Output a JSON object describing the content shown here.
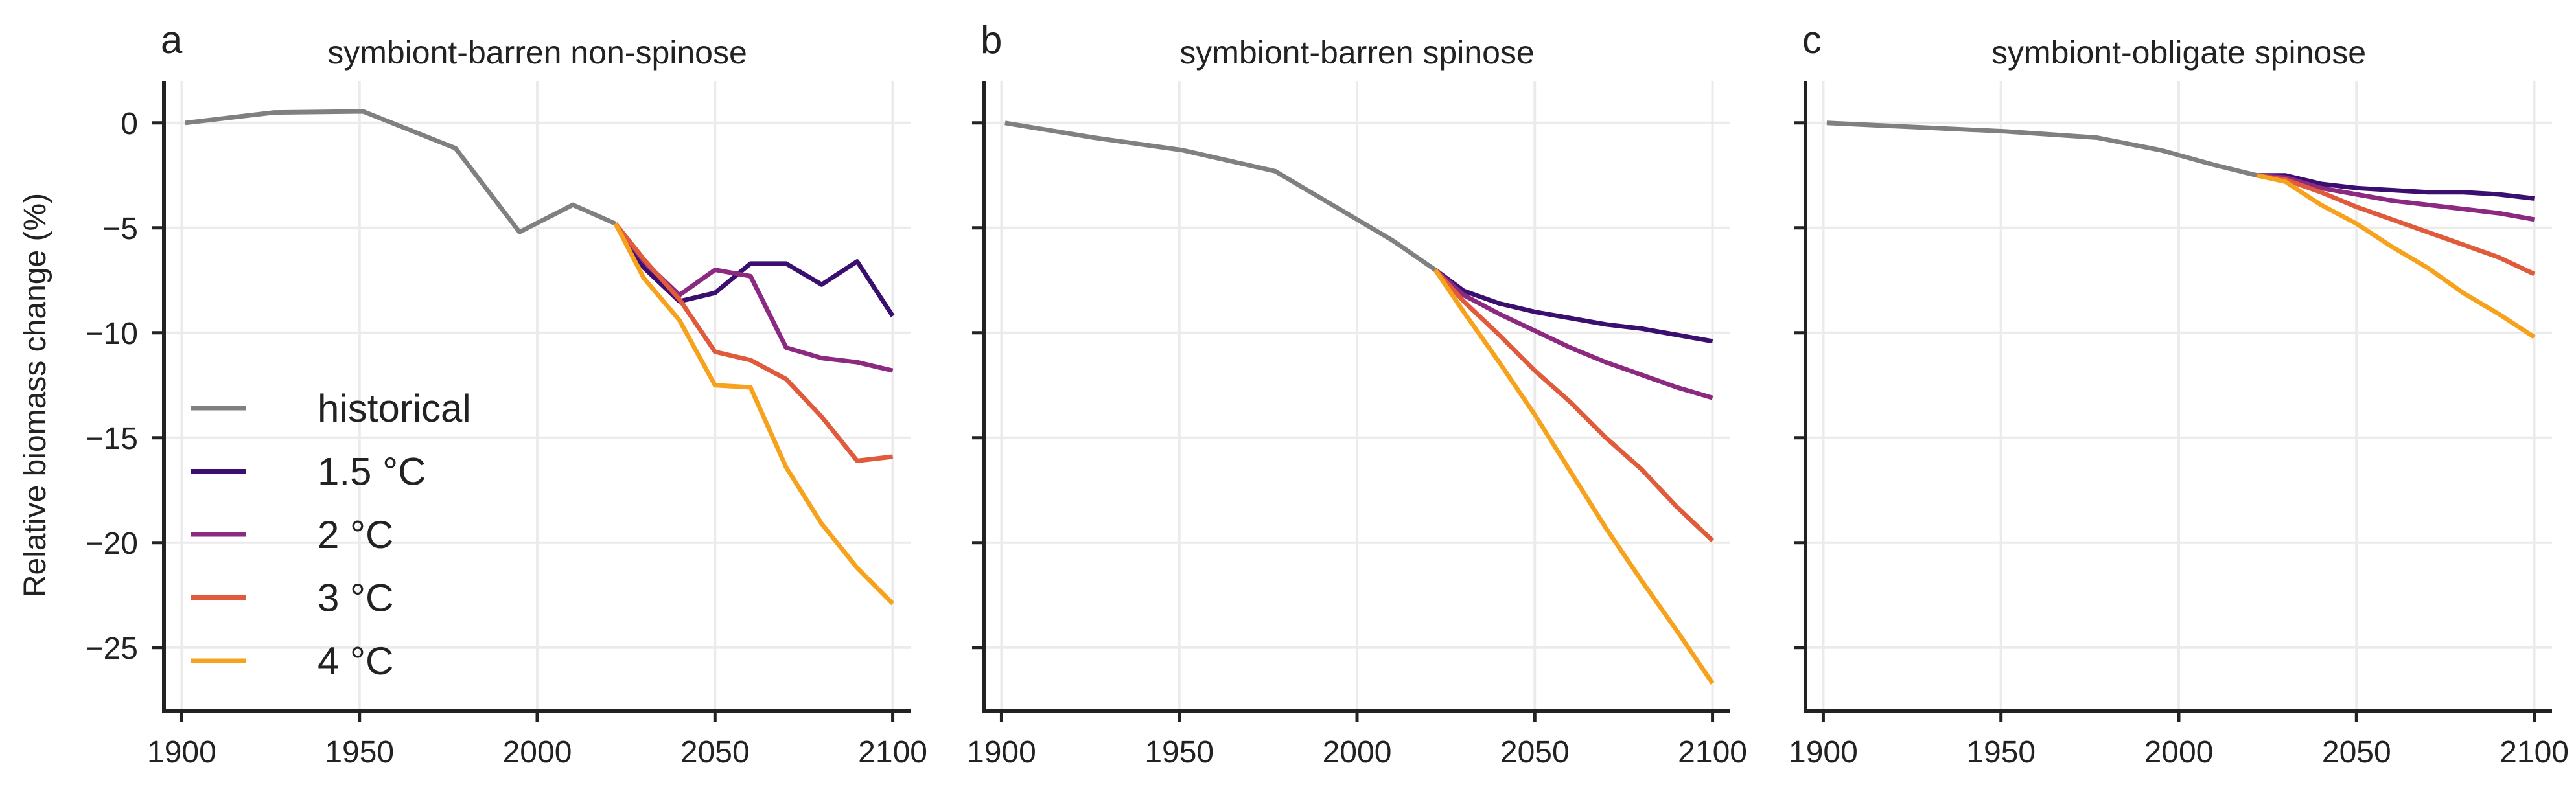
{
  "chart_data": [
    {
      "type": "line",
      "panel_label": "a",
      "title": "symbiont-barren non-spinose",
      "ylabel": "Relative biomass change (%)",
      "xlim": [
        1895,
        2105
      ],
      "ylim": [
        -28,
        2
      ],
      "xticks": [
        1900,
        1950,
        2000,
        2050,
        2100
      ],
      "xtick_labels": [
        "1900",
        "1950",
        "2000",
        "2050",
        "2100"
      ],
      "yticks": [
        0,
        -5,
        -10,
        -15,
        -20,
        -25
      ],
      "ytick_labels": [
        "0",
        "−5",
        "−10",
        "−15",
        "−20",
        "−25"
      ],
      "show_yticklabels": true,
      "grid": true,
      "legend": true,
      "legend_position": "lower-left",
      "series": [
        {
          "name": "historical",
          "color": "#808080",
          "x": [
            1901,
            1926,
            1951,
            1977,
            1995,
            2010,
            2022
          ],
          "y": [
            0.0,
            0.5,
            0.55,
            -1.2,
            -5.2,
            -3.9,
            -4.8
          ]
        },
        {
          "name": "1.5 °C",
          "color": "#3b0f70",
          "x": [
            2022,
            2030,
            2040,
            2050,
            2060,
            2070,
            2080,
            2090,
            2100
          ],
          "y": [
            -4.8,
            -6.9,
            -8.5,
            -8.1,
            -6.7,
            -6.7,
            -7.7,
            -6.6,
            -9.2
          ]
        },
        {
          "name": "2 °C",
          "color": "#8c2981",
          "x": [
            2022,
            2030,
            2040,
            2050,
            2060,
            2070,
            2080,
            2090,
            2100
          ],
          "y": [
            -4.8,
            -6.6,
            -8.2,
            -7.0,
            -7.3,
            -10.7,
            -11.2,
            -11.4,
            -11.8
          ]
        },
        {
          "name": "3 °C",
          "color": "#e05a3c",
          "x": [
            2022,
            2030,
            2040,
            2050,
            2060,
            2070,
            2080,
            2090,
            2100
          ],
          "y": [
            -4.8,
            -6.5,
            -8.4,
            -10.9,
            -11.3,
            -12.2,
            -14.0,
            -16.1,
            -15.9
          ]
        },
        {
          "name": "4 °C",
          "color": "#f6a21c",
          "x": [
            2022,
            2030,
            2040,
            2050,
            2060,
            2070,
            2080,
            2090,
            2100
          ],
          "y": [
            -4.8,
            -7.4,
            -9.4,
            -12.5,
            -12.6,
            -16.4,
            -19.1,
            -21.2,
            -22.9
          ]
        }
      ]
    },
    {
      "type": "line",
      "panel_label": "b",
      "title": "symbiont-barren spinose",
      "xlim": [
        1895,
        2105
      ],
      "ylim": [
        -28,
        2
      ],
      "xticks": [
        1900,
        1950,
        2000,
        2050,
        2100
      ],
      "xtick_labels": [
        "1900",
        "1950",
        "2000",
        "2050",
        "2100"
      ],
      "yticks": [
        0,
        -5,
        -10,
        -15,
        -20,
        -25
      ],
      "show_yticklabels": false,
      "grid": true,
      "legend": false,
      "series": [
        {
          "name": "historical",
          "color": "#808080",
          "x": [
            1901,
            1926,
            1951,
            1977,
            1995,
            2010,
            2022
          ],
          "y": [
            0.0,
            -0.7,
            -1.3,
            -2.3,
            -4.1,
            -5.6,
            -7.0
          ]
        },
        {
          "name": "1.5 °C",
          "color": "#3b0f70",
          "x": [
            2022,
            2030,
            2040,
            2050,
            2060,
            2070,
            2080,
            2090,
            2100
          ],
          "y": [
            -7.0,
            -8.0,
            -8.6,
            -9.0,
            -9.3,
            -9.6,
            -9.8,
            -10.1,
            -10.4
          ]
        },
        {
          "name": "2 °C",
          "color": "#8c2981",
          "x": [
            2022,
            2030,
            2040,
            2050,
            2060,
            2070,
            2080,
            2090,
            2100
          ],
          "y": [
            -7.0,
            -8.2,
            -9.1,
            -9.9,
            -10.7,
            -11.4,
            -12.0,
            -12.6,
            -13.1
          ]
        },
        {
          "name": "3 °C",
          "color": "#e05a3c",
          "x": [
            2022,
            2030,
            2040,
            2050,
            2060,
            2070,
            2080,
            2090,
            2100
          ],
          "y": [
            -7.0,
            -8.5,
            -10.1,
            -11.8,
            -13.3,
            -15.0,
            -16.5,
            -18.3,
            -19.9
          ]
        },
        {
          "name": "4 °C",
          "color": "#f6a21c",
          "x": [
            2022,
            2030,
            2040,
            2050,
            2060,
            2070,
            2080,
            2090,
            2100
          ],
          "y": [
            -7.0,
            -9.0,
            -11.4,
            -13.9,
            -16.6,
            -19.3,
            -21.8,
            -24.2,
            -26.7
          ]
        }
      ]
    },
    {
      "type": "line",
      "panel_label": "c",
      "title": "symbiont-obligate spinose",
      "xlim": [
        1895,
        2105
      ],
      "ylim": [
        -28,
        2
      ],
      "xticks": [
        1900,
        1950,
        2000,
        2050,
        2100
      ],
      "xtick_labels": [
        "1900",
        "1950",
        "2000",
        "2050",
        "2100"
      ],
      "yticks": [
        0,
        -5,
        -10,
        -15,
        -20,
        -25
      ],
      "show_yticklabels": false,
      "grid": true,
      "legend": false,
      "series": [
        {
          "name": "historical",
          "color": "#808080",
          "x": [
            1901,
            1926,
            1951,
            1977,
            1995,
            2010,
            2022
          ],
          "y": [
            0.0,
            -0.2,
            -0.4,
            -0.7,
            -1.3,
            -2.0,
            -2.5
          ]
        },
        {
          "name": "1.5 °C",
          "color": "#3b0f70",
          "x": [
            2022,
            2030,
            2040,
            2050,
            2060,
            2070,
            2080,
            2090,
            2100
          ],
          "y": [
            -2.5,
            -2.5,
            -2.9,
            -3.1,
            -3.2,
            -3.3,
            -3.3,
            -3.4,
            -3.6
          ]
        },
        {
          "name": "2 °C",
          "color": "#8c2981",
          "x": [
            2022,
            2030,
            2040,
            2050,
            2060,
            2070,
            2080,
            2090,
            2100
          ],
          "y": [
            -2.5,
            -2.6,
            -3.1,
            -3.4,
            -3.7,
            -3.9,
            -4.1,
            -4.3,
            -4.6
          ]
        },
        {
          "name": "3 °C",
          "color": "#e05a3c",
          "x": [
            2022,
            2030,
            2040,
            2050,
            2060,
            2070,
            2080,
            2090,
            2100
          ],
          "y": [
            -2.5,
            -2.7,
            -3.3,
            -4.0,
            -4.6,
            -5.2,
            -5.8,
            -6.4,
            -7.2
          ]
        },
        {
          "name": "4 °C",
          "color": "#f6a21c",
          "x": [
            2022,
            2030,
            2040,
            2050,
            2060,
            2070,
            2080,
            2090,
            2100
          ],
          "y": [
            -2.5,
            -2.8,
            -3.9,
            -4.8,
            -5.9,
            -6.9,
            -8.1,
            -9.1,
            -10.2
          ]
        }
      ]
    }
  ]
}
